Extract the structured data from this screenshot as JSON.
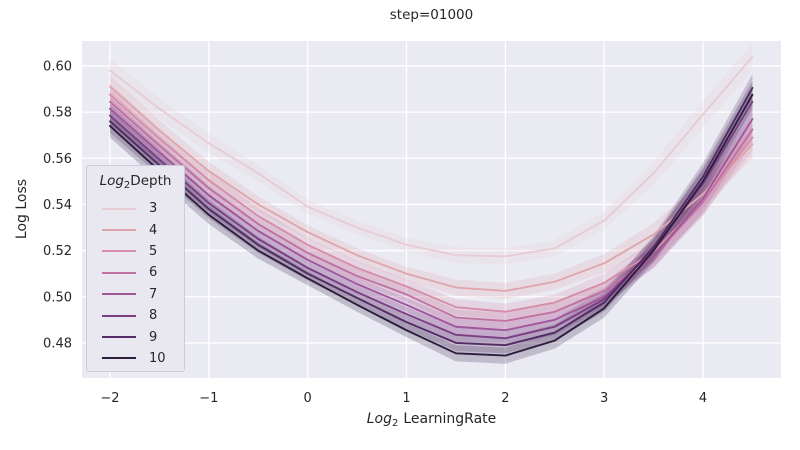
{
  "chart_data": {
    "type": "line",
    "title": "step=01000",
    "xlabel": {
      "italic": "Log",
      "sub": "2",
      "rest": "LearningRate"
    },
    "ylabel": "Log Loss",
    "legend": {
      "title": {
        "italic": "Log",
        "sub": "2",
        "rest": "Depth"
      },
      "position": "upper-left-inside"
    },
    "grid": true,
    "background": "#eaeaf2",
    "grid_color": "#ffffff",
    "text_color": "#262626",
    "band_opacity": 0.22,
    "xlim": [
      -2.283,
      4.789
    ],
    "ylim": [
      0.4648,
      0.6108
    ],
    "x_ticks": {
      "values": [
        -2,
        -1,
        0,
        1,
        2,
        3,
        4
      ],
      "labels": [
        "−2",
        "−1",
        "0",
        "1",
        "2",
        "3",
        "4"
      ]
    },
    "y_ticks": {
      "values": [
        0.48,
        0.5,
        0.52,
        0.54,
        0.56,
        0.58,
        0.6
      ],
      "labels": [
        "0.48",
        "0.50",
        "0.52",
        "0.54",
        "0.56",
        "0.58",
        "0.60"
      ]
    },
    "x": [
      -2,
      -1.5,
      -1,
      -0.5,
      0,
      0.5,
      1,
      1.5,
      2,
      2.5,
      3,
      3.5,
      4,
      4.5
    ],
    "ci_halfwidth": [
      0.005,
      0.0045,
      0.004,
      0.0035,
      0.003,
      0.003,
      0.003,
      0.0035,
      0.0035,
      0.0035,
      0.004,
      0.005,
      0.006,
      0.006
    ],
    "series": [
      {
        "name": "3",
        "color": "#e7ccd3",
        "values": [
          0.598,
          0.5815,
          0.5665,
          0.5535,
          0.539,
          0.53,
          0.5225,
          0.518,
          0.5175,
          0.521,
          0.533,
          0.5535,
          0.579,
          0.604
        ]
      },
      {
        "name": "4",
        "color": "#e0a6ae",
        "values": [
          0.591,
          0.572,
          0.5545,
          0.54,
          0.528,
          0.518,
          0.51,
          0.504,
          0.5025,
          0.5065,
          0.5145,
          0.527,
          0.5445,
          0.566
        ]
      },
      {
        "name": "5",
        "color": "#d68da7",
        "values": [
          0.5875,
          0.5685,
          0.5505,
          0.535,
          0.5225,
          0.5125,
          0.5045,
          0.4955,
          0.4935,
          0.4975,
          0.506,
          0.5195,
          0.5415,
          0.569
        ]
      },
      {
        "name": "6",
        "color": "#c0719f",
        "values": [
          0.5845,
          0.5655,
          0.547,
          0.5315,
          0.519,
          0.509,
          0.501,
          0.491,
          0.4895,
          0.4935,
          0.5025,
          0.5175,
          0.541,
          0.5725
        ]
      },
      {
        "name": "7",
        "color": "#a1569a",
        "values": [
          0.5815,
          0.5625,
          0.544,
          0.5285,
          0.516,
          0.5055,
          0.4965,
          0.487,
          0.4855,
          0.49,
          0.5,
          0.5175,
          0.5425,
          0.577
        ]
      },
      {
        "name": "8",
        "color": "#7b3e83",
        "values": [
          0.5785,
          0.5595,
          0.5405,
          0.525,
          0.5125,
          0.502,
          0.4925,
          0.4835,
          0.482,
          0.487,
          0.499,
          0.5205,
          0.549,
          0.5845
        ]
      },
      {
        "name": "9",
        "color": "#532b65",
        "values": [
          0.576,
          0.557,
          0.538,
          0.5225,
          0.51,
          0.4995,
          0.489,
          0.48,
          0.479,
          0.4845,
          0.4975,
          0.5215,
          0.552,
          0.5905
        ]
      },
      {
        "name": "10",
        "color": "#2d1d3e",
        "values": [
          0.574,
          0.5545,
          0.5355,
          0.52,
          0.508,
          0.4965,
          0.4855,
          0.4755,
          0.4745,
          0.481,
          0.495,
          0.52,
          0.55,
          0.5875
        ]
      }
    ]
  }
}
